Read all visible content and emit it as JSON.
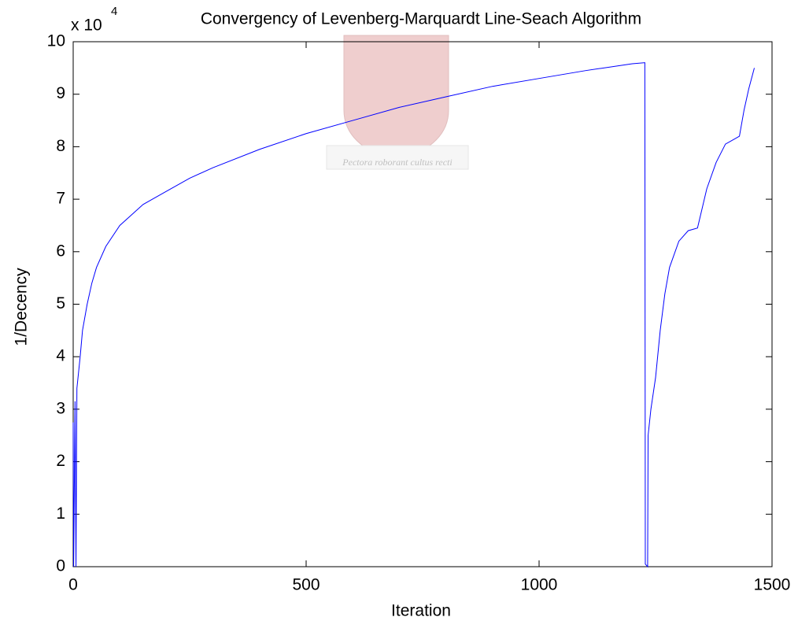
{
  "chart_data": {
    "type": "line",
    "title": "Convergency of Levenberg-Marquardt Line-Seach Algorithm",
    "x_label": "Iteration",
    "y_label": "1/Decency",
    "y_multiplier": {
      "text": "x 10",
      "exponent": "4"
    },
    "watermark": "Pectora roborant cultus recti",
    "x": [
      0,
      1,
      4,
      6,
      8,
      15,
      20,
      30,
      40,
      50,
      70,
      100,
      150,
      200,
      250,
      300,
      400,
      500,
      600,
      700,
      800,
      900,
      1000,
      1100,
      1200,
      1227,
      1228,
      1233,
      1234,
      1240,
      1250,
      1260,
      1270,
      1280,
      1300,
      1320,
      1340,
      1360,
      1380,
      1400,
      1420,
      1430,
      1440,
      1450,
      1462
    ],
    "series": [
      {
        "name": "1/Decency",
        "color": "#0000ff",
        "values": [
          2.75,
          0,
          3.15,
          0,
          3.4,
          4.0,
          4.5,
          5.0,
          5.4,
          5.7,
          6.1,
          6.5,
          6.9,
          7.15,
          7.4,
          7.6,
          7.95,
          8.25,
          8.5,
          8.75,
          8.95,
          9.15,
          9.3,
          9.45,
          9.58,
          9.6,
          0.05,
          0,
          2.5,
          3.0,
          3.6,
          4.5,
          5.2,
          5.7,
          6.2,
          6.4,
          6.45,
          7.2,
          7.7,
          8.05,
          8.15,
          8.2,
          8.7,
          9.1,
          9.5
        ]
      }
    ],
    "xlim": [
      0,
      1500
    ],
    "xticks": [
      0,
      500,
      1000,
      1500
    ],
    "ylim": [
      0,
      10
    ],
    "yticks": [
      0,
      1,
      2,
      3,
      4,
      5,
      6,
      7,
      8,
      9,
      10
    ],
    "grid": false
  }
}
